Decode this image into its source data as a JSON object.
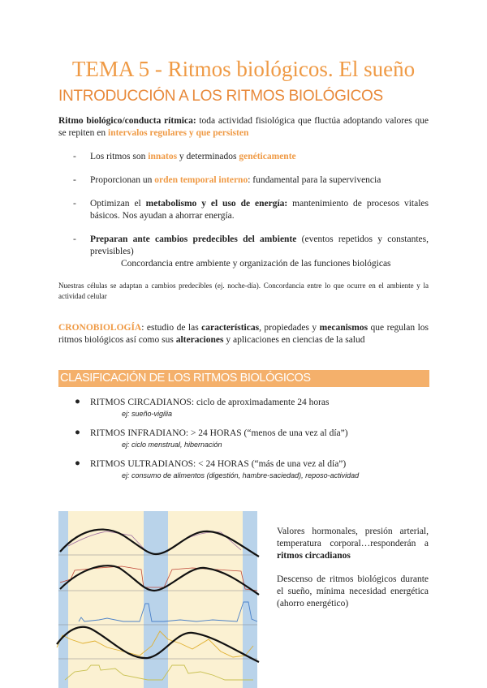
{
  "title": "TEMA 5 - Ritmos biológicos. El sueño",
  "section1": "INTRODUCCIÓN A LOS RITMOS BIOLÓGICOS",
  "def": {
    "bold": "Ritmo biológico/conducta rítmica:",
    "text": " toda actividad fisiológica que fluctúa adoptando valores que se repiten en ",
    "highlight": "intervalos regulares y que persisten"
  },
  "points": [
    {
      "a": "Los ritmos son ",
      "h1": "innatos",
      "b": " y determinados ",
      "h2": "genéticamente"
    },
    {
      "a": "Proporcionan un ",
      "h1": "orden temporal interno",
      "b": ": fundamental para la supervivencia"
    },
    {
      "a": "Optimizan el ",
      "bold": "metabolismo y el uso de energía:",
      "b": " mantenimiento de procesos vitales básicos. Nos ayudan a ahorrar energía."
    },
    {
      "bold": "Preparan ante cambios predecibles del ambiente",
      "b": " (eventos repetidos y constantes, previsibles)",
      "sub": "Concordancia entre ambiente y organización de las funciones biológicas"
    }
  ],
  "dash": "-",
  "note": "Nuestras células se adaptan a cambios predecibles (ej. noche-día). Concordancia entre lo que ocurre en el ambiente y la actividad celular",
  "crono": {
    "h": "CRONOBIOLOGÍA",
    "a": ": estudio de las ",
    "b1": "características",
    "b": ", propiedades y ",
    "b2": "mecanismos",
    "c": " que regulan los ritmos biológicos así como sus ",
    "b3": "alteraciones",
    "d": " y aplicaciones en ciencias de la salud"
  },
  "section2": "CLASIFICACIÓN DE LOS RITMOS BIOLÓGICOS",
  "bullet": "●",
  "rhythms": [
    {
      "text": "RITMOS CIRCADIANOS: ciclo de aproximadamente 24 horas",
      "ej": "ej: sueño-vigilia"
    },
    {
      "text": "RITMOS INFRADIANO: > 24 HORAS (“menos de una vez al día”)",
      "ej": "ej: ciclo menstrual, hibernación"
    },
    {
      "text": "RITMOS ULTRADIANOS: < 24 HORAS (“más de una vez al día”)",
      "ej": "ej: consumo de alimentos (digestión, hambre-saciedad), reposo-actividad"
    }
  ],
  "side": {
    "p1": "Valores hormonales, presión arterial, temperatura corporal…responderán a ",
    "p1b": "ritmos circadianos",
    "p2": "Descenso de ritmos biológicos durante el sueño, mínima necesidad energética (ahorro energético)"
  },
  "colors": {
    "accent": "#ef9a45",
    "band": "#f4b06b",
    "night": "#b9d3ea",
    "day": "#fbf1d2"
  }
}
